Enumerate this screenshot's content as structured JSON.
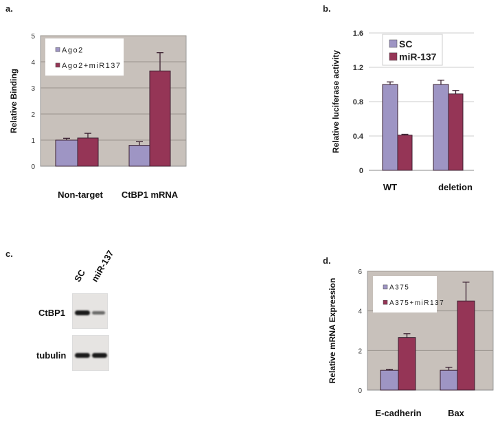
{
  "panels": {
    "a": "a.",
    "b": "b.",
    "c": "c.",
    "d": "d."
  },
  "colors": {
    "series1": "#9e95c4",
    "series2": "#953556",
    "plot_bg_gray": "#c8c1bb"
  },
  "chart_data": [
    {
      "type": "bar",
      "panel": "a",
      "ylabel": "Relative Binding",
      "categories": [
        "Non-target",
        "CtBP1 mRNA"
      ],
      "ylim": [
        0,
        5
      ],
      "yticks": [
        "0",
        "1",
        "2",
        "3",
        "4",
        "5"
      ],
      "grid": true,
      "legend": "top-left",
      "series": [
        {
          "name": "Ago2",
          "values": [
            1.0,
            0.8
          ],
          "errors": [
            0.07,
            0.14
          ]
        },
        {
          "name": "Ago2+miR137",
          "values": [
            1.08,
            3.65
          ],
          "errors": [
            0.18,
            0.7
          ]
        }
      ]
    },
    {
      "type": "bar",
      "panel": "b",
      "ylabel": "Relative luciferase activity",
      "categories": [
        "WT",
        "deletion"
      ],
      "ylim": [
        0,
        1.6
      ],
      "yticks": [
        "0",
        "0.4",
        "0.8",
        "1.2",
        "1.6"
      ],
      "grid": true,
      "legend": "top",
      "series": [
        {
          "name": "SC",
          "values": [
            1.0,
            1.0
          ],
          "errors": [
            0.03,
            0.05
          ]
        },
        {
          "name": "miR-137",
          "values": [
            0.41,
            0.89
          ],
          "errors": [
            0.01,
            0.04
          ]
        }
      ]
    },
    {
      "type": "bar",
      "panel": "d",
      "ylabel": "Relative mRNA Expression",
      "categories": [
        "E-cadherin",
        "Bax"
      ],
      "ylim": [
        0,
        6
      ],
      "yticks": [
        "0",
        "2",
        "4",
        "6"
      ],
      "grid": true,
      "legend": "top-left",
      "series": [
        {
          "name": "A375",
          "values": [
            1.0,
            1.0
          ],
          "errors": [
            0.05,
            0.15
          ]
        },
        {
          "name": "A375+miR137",
          "values": [
            2.65,
            4.5
          ],
          "errors": [
            0.2,
            0.95
          ]
        }
      ]
    }
  ],
  "blot": {
    "lanes": [
      "SC",
      "miR-137"
    ],
    "rows": [
      {
        "label": "CtBP1",
        "intensity": [
          1.0,
          0.5
        ]
      },
      {
        "label": "tubulin",
        "intensity": [
          1.0,
          1.0
        ]
      }
    ]
  }
}
